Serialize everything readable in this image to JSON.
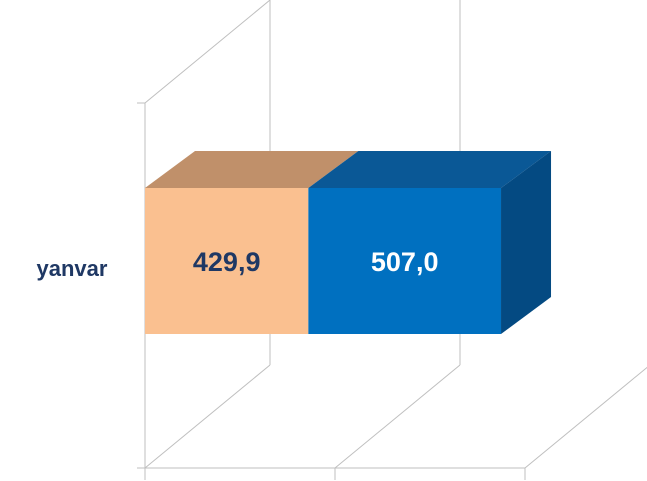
{
  "chart_data": {
    "type": "bar",
    "orientation": "horizontal",
    "stacked": true,
    "three_d": true,
    "categories": [
      "yanvar"
    ],
    "series": [
      {
        "values": [
          429.9
        ],
        "labels": [
          "429,9"
        ],
        "color": "#fac090",
        "top_color": "#c0906a",
        "label_color": "#1f3864"
      },
      {
        "values": [
          507.0
        ],
        "labels": [
          "507,0"
        ],
        "color": "#0070c0",
        "top_color": "#0a5896",
        "side_color": "#044a82",
        "label_color": "#ffffff"
      }
    ],
    "xlim": [
      0,
      1000
    ],
    "grid": true,
    "legend": "none"
  }
}
